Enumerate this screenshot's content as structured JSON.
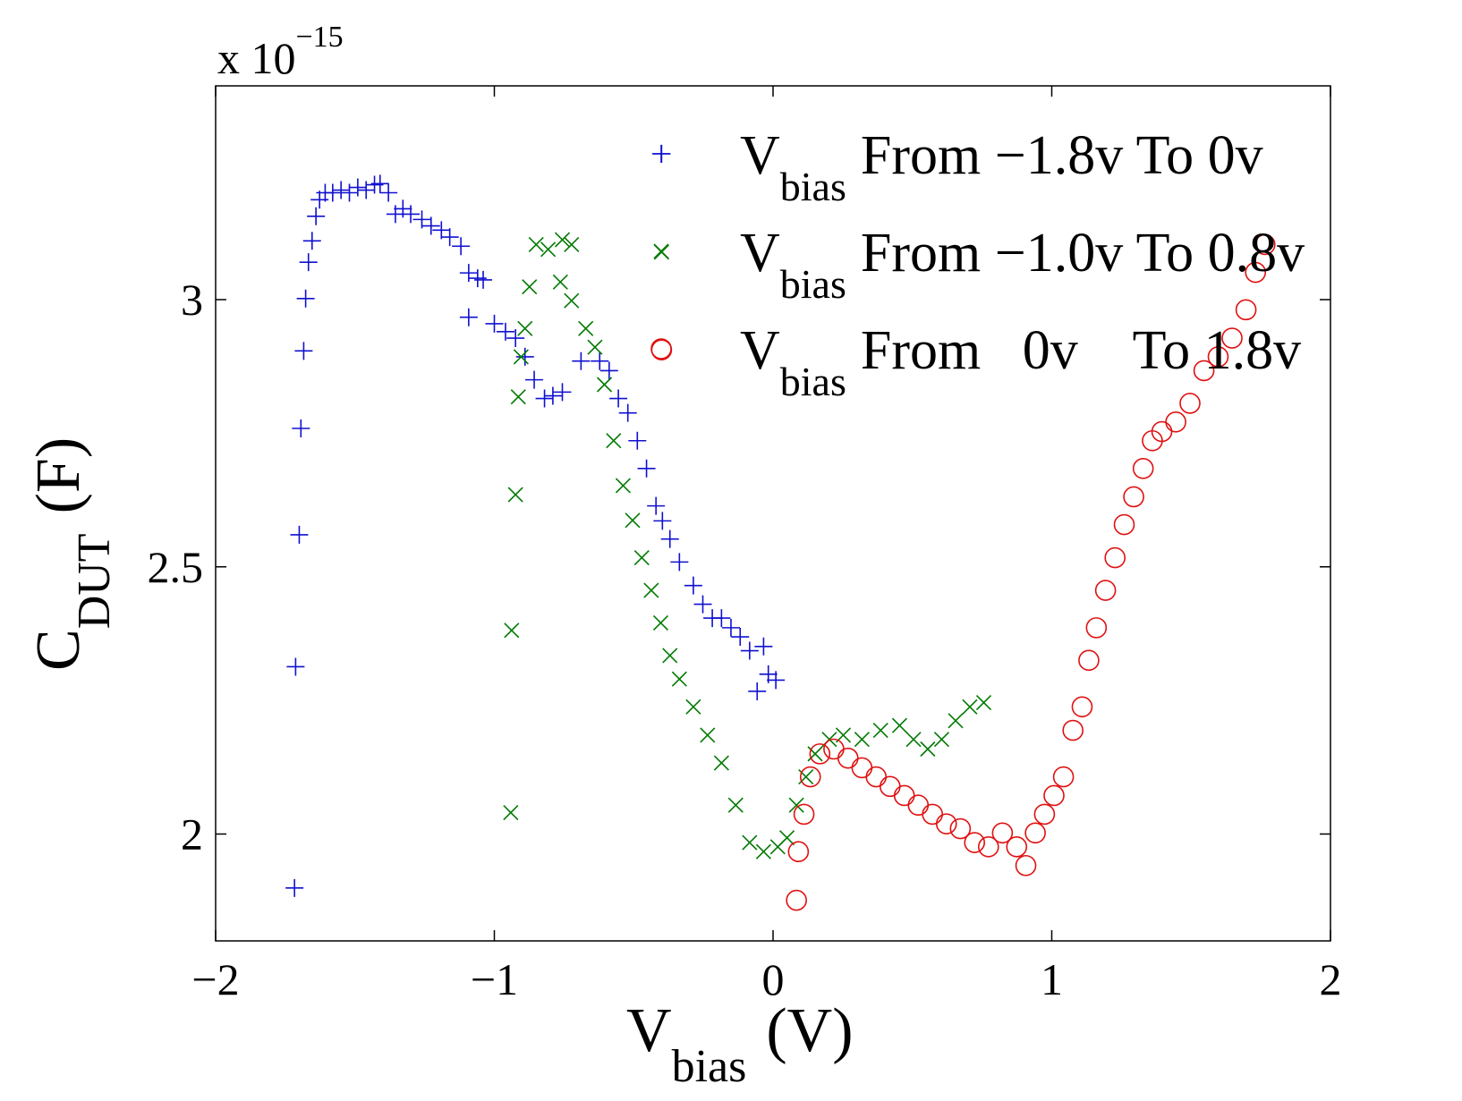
{
  "chart_data": {
    "type": "scatter",
    "x_label": {
      "main": "V",
      "sub": "bias",
      "unit": "(V)"
    },
    "y_label": {
      "main": "C",
      "sub": "DUT",
      "unit": "(F)"
    },
    "y_multiplier": {
      "base": "x 10",
      "exponent": "−15"
    },
    "xlim": [
      -2,
      2
    ],
    "xticks": [
      {
        "value": -2,
        "label": "−2"
      },
      {
        "value": -1,
        "label": "−1"
      },
      0,
      1,
      2
    ],
    "ylim": [
      1.8,
      3.4
    ],
    "yticks": [
      2,
      2.5,
      3
    ],
    "grid": false,
    "legend": "upper right",
    "series": [
      {
        "name_symbol": "V",
        "name_subscript": "bias",
        "name": "From −1.8v To 0v",
        "marker": "plus",
        "color": "#1010d0",
        "x": [
          -1.717,
          -1.713,
          -1.7,
          -1.694,
          -1.684,
          -1.677,
          -1.667,
          -1.654,
          -1.64,
          -1.627,
          -1.607,
          -1.58,
          -1.55,
          -1.52,
          -1.49,
          -1.46,
          -1.43,
          -1.41,
          -1.38,
          -1.355,
          -1.328,
          -1.3,
          -1.26,
          -1.227,
          -1.19,
          -1.16,
          -1.12,
          -1.092,
          -1.06,
          -1.04,
          -1.092,
          -1.0,
          -0.96,
          -0.924,
          -0.89,
          -0.857,
          -0.82,
          -0.79,
          -0.756,
          -0.689,
          -0.622,
          -0.588,
          -0.555,
          -0.521,
          -0.487,
          -0.454,
          -0.42,
          -0.397,
          -0.37,
          -0.336,
          -0.286,
          -0.252,
          -0.218,
          -0.185,
          -0.151,
          -0.118,
          -0.084,
          -0.057,
          -0.034,
          -0.017,
          0.01,
          -0.4
        ],
        "values": [
          1.899,
          2.313,
          2.56,
          2.759,
          2.904,
          3.002,
          3.07,
          3.11,
          3.156,
          3.187,
          3.2,
          3.2,
          3.205,
          3.2,
          3.21,
          3.205,
          3.215,
          3.217,
          3.2,
          3.16,
          3.17,
          3.16,
          3.15,
          3.138,
          3.13,
          3.117,
          3.1,
          3.05,
          3.04,
          3.037,
          2.967,
          2.955,
          2.94,
          2.928,
          2.893,
          2.85,
          2.815,
          2.82,
          2.827,
          2.885,
          2.885,
          2.867,
          2.815,
          2.788,
          2.736,
          2.684,
          2.614,
          2.586,
          2.552,
          2.509,
          2.465,
          2.43,
          2.404,
          2.404,
          2.386,
          2.369,
          2.343,
          2.267,
          2.351,
          2.299,
          2.288,
          3.273
        ]
      },
      {
        "name_symbol": "V",
        "name_subscript": "bias",
        "name": "From −1.0v To 0.8v",
        "marker": "cross",
        "color": "#007a00",
        "x": [
          -0.941,
          -0.938,
          -0.924,
          -0.914,
          -0.904,
          -0.89,
          -0.874,
          -0.85,
          -0.807,
          -0.756,
          -0.723,
          -0.763,
          -0.723,
          -0.672,
          -0.639,
          -0.605,
          -0.572,
          -0.538,
          -0.504,
          -0.471,
          -0.437,
          -0.403,
          -0.37,
          -0.336,
          -0.286,
          -0.235,
          -0.185,
          -0.134,
          -0.084,
          -0.034,
          0.017,
          0.05,
          0.084,
          0.118,
          0.151,
          0.202,
          0.252,
          0.319,
          0.386,
          0.454,
          0.504,
          0.555,
          0.605,
          0.655,
          0.706,
          0.756,
          -0.4
        ],
        "values": [
          2.04,
          2.381,
          2.635,
          2.818,
          2.893,
          2.946,
          3.024,
          3.103,
          3.094,
          3.112,
          3.103,
          3.033,
          2.998,
          2.946,
          2.911,
          2.841,
          2.736,
          2.652,
          2.587,
          2.517,
          2.456,
          2.395,
          2.334,
          2.29,
          2.238,
          2.185,
          2.133,
          2.054,
          1.984,
          1.967,
          1.976,
          1.993,
          2.054,
          2.107,
          2.15,
          2.177,
          2.185,
          2.177,
          2.194,
          2.203,
          2.177,
          2.159,
          2.177,
          2.212,
          2.238,
          2.246,
          3.089
        ]
      },
      {
        "name_symbol": "V",
        "name_subscript": "bias",
        "name": "From   0v    To 1.8v",
        "marker": "circle",
        "color": "#e01010",
        "x": [
          0.084,
          0.091,
          0.111,
          0.134,
          0.168,
          0.218,
          0.269,
          0.319,
          0.37,
          0.42,
          0.471,
          0.521,
          0.572,
          0.622,
          0.672,
          0.723,
          0.773,
          0.823,
          0.874,
          0.907,
          0.941,
          0.974,
          1.008,
          1.042,
          1.076,
          1.109,
          1.133,
          1.16,
          1.193,
          1.227,
          1.26,
          1.294,
          1.328,
          1.361,
          1.395,
          1.445,
          1.496,
          1.546,
          1.597,
          1.647,
          1.697,
          1.731,
          1.765,
          -0.4
        ],
        "values": [
          1.876,
          1.967,
          2.037,
          2.107,
          2.15,
          2.159,
          2.142,
          2.124,
          2.107,
          2.089,
          2.072,
          2.054,
          2.037,
          2.019,
          2.01,
          1.984,
          1.976,
          2.002,
          1.976,
          1.941,
          2.002,
          2.037,
          2.072,
          2.107,
          2.194,
          2.238,
          2.325,
          2.386,
          2.456,
          2.517,
          2.579,
          2.631,
          2.684,
          2.736,
          2.753,
          2.771,
          2.806,
          2.867,
          2.893,
          2.928,
          2.981,
          3.051,
          3.103,
          2.906
        ]
      }
    ]
  }
}
